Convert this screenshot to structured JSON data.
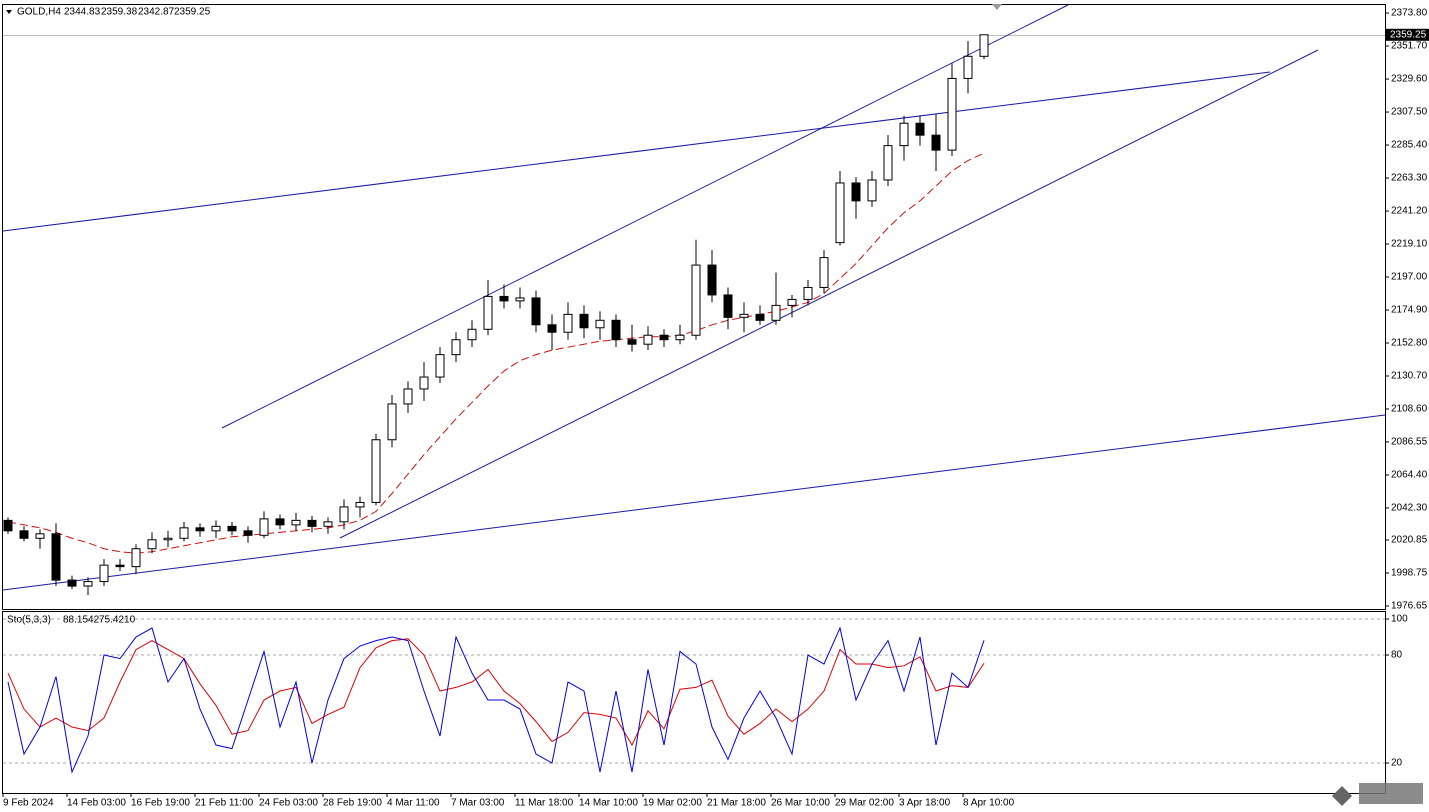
{
  "chart_data": [
    {
      "type": "candlestick",
      "title": "GOLD,H4",
      "categories": [
        "9 Feb 2024",
        null,
        null,
        null,
        "14 Feb 03:00",
        null,
        null,
        null,
        "16 Feb 19:00",
        null,
        null,
        null,
        "21 Feb 11:00",
        null,
        null,
        null,
        "24 Feb 03:00",
        null,
        null,
        null,
        "28 Feb 19:00",
        null,
        null,
        null,
        "4 Mar 11:00",
        null,
        null,
        null,
        "7 Mar 03:00",
        null,
        null,
        null,
        "11 Mar 18:00",
        null,
        null,
        null,
        "14 Mar 10:00",
        null,
        null,
        null,
        "19 Mar 02:00",
        null,
        null,
        null,
        "21 Mar 18:00",
        null,
        null,
        null,
        "26 Mar 10:00",
        null,
        null,
        null,
        "29 Mar 02:00",
        null,
        null,
        null,
        "3 Apr 18:00",
        null,
        null,
        null,
        "8 Apr 10:00",
        null
      ],
      "open": [
        2034,
        2027,
        2022,
        2025,
        1994,
        1990,
        1993,
        2004,
        2003,
        2015,
        2021,
        2022,
        2029,
        2027,
        2030,
        2027,
        2024,
        2035,
        2031,
        2034,
        2030,
        2033,
        2043,
        2046,
        2088,
        2112,
        2122,
        2130,
        2145,
        2155,
        2162,
        2184,
        2181,
        2183,
        2165,
        2160,
        2172,
        2163,
        2168,
        2155,
        2152,
        2158,
        2155,
        2158,
        2205,
        2185,
        2170,
        2172,
        2168,
        2178,
        2182,
        2190,
        2220,
        2260,
        2248,
        2262,
        2285,
        2300,
        2292,
        2282,
        2330,
        2344.83
      ],
      "high": [
        2036,
        2030,
        2028,
        2032,
        1997,
        1996,
        2008,
        2008,
        2018,
        2026,
        2027,
        2033,
        2032,
        2034,
        2033,
        2030,
        2040,
        2038,
        2039,
        2037,
        2036,
        2048,
        2050,
        2092,
        2118,
        2127,
        2140,
        2150,
        2160,
        2168,
        2195,
        2192,
        2190,
        2188,
        2172,
        2180,
        2178,
        2174,
        2172,
        2165,
        2164,
        2162,
        2165,
        2222,
        2215,
        2190,
        2180,
        2178,
        2200,
        2185,
        2195,
        2215,
        2268,
        2264,
        2268,
        2292,
        2305,
        2305,
        2306,
        2340,
        2355,
        2359.38
      ],
      "low": [
        2025,
        2020,
        2015,
        1990,
        1988,
        1984,
        1990,
        2000,
        1998,
        2012,
        2016,
        2020,
        2023,
        2022,
        2024,
        2019,
        2022,
        2028,
        2027,
        2026,
        2025,
        2028,
        2036,
        2044,
        2083,
        2106,
        2114,
        2126,
        2140,
        2150,
        2158,
        2176,
        2176,
        2160,
        2148,
        2155,
        2156,
        2155,
        2150,
        2147,
        2148,
        2150,
        2152,
        2155,
        2180,
        2162,
        2160,
        2165,
        2165,
        2170,
        2178,
        2186,
        2218,
        2236,
        2244,
        2258,
        2275,
        2285,
        2268,
        2278,
        2320,
        2342.87
      ],
      "close": [
        2027,
        2022,
        2025,
        1994,
        1990,
        1993,
        2004,
        2003,
        2015,
        2021,
        2022,
        2029,
        2027,
        2030,
        2027,
        2024,
        2035,
        2031,
        2034,
        2030,
        2033,
        2043,
        2046,
        2088,
        2112,
        2122,
        2130,
        2145,
        2155,
        2162,
        2184,
        2181,
        2183,
        2165,
        2160,
        2172,
        2163,
        2168,
        2155,
        2152,
        2158,
        2155,
        2158,
        2205,
        2185,
        2170,
        2172,
        2168,
        2178,
        2182,
        2190,
        2210,
        2260,
        2248,
        2262,
        2285,
        2300,
        2292,
        2282,
        2330,
        2344.83,
        2359.25
      ],
      "up_color": "#ffffff",
      "down_color": "#000000",
      "edge_color": "#000000",
      "overlay": {
        "color": "#d01010",
        "dashed": true,
        "values": [
          2033,
          2031,
          2029,
          2026,
          2022,
          2019,
          2015,
          2013,
          2012,
          2013,
          2015,
          2017,
          2019,
          2021,
          2023,
          2024,
          2025,
          2026,
          2027,
          2028,
          2029,
          2031,
          2034,
          2040,
          2052,
          2065,
          2078,
          2090,
          2102,
          2113,
          2124,
          2134,
          2141,
          2145,
          2148,
          2150,
          2152,
          2154,
          2155,
          2156,
          2157,
          2157,
          2158,
          2161,
          2165,
          2168,
          2170,
          2172,
          2174,
          2177,
          2180,
          2186,
          2196,
          2206,
          2218,
          2230,
          2240,
          2248,
          2258,
          2268,
          2275,
          2280
        ]
      },
      "ylim": [
        1975.3,
        2379.2
      ],
      "yticks": [
        {
          "value": 2373.8,
          "label": "2373.80"
        },
        {
          "value": 2351.7,
          "label": "2351.70"
        },
        {
          "value": 2329.6,
          "label": "2329.60"
        },
        {
          "value": 2307.5,
          "label": "2307.50"
        },
        {
          "value": 2285.4,
          "label": "2285.40"
        },
        {
          "value": 2263.3,
          "label": "2263.30"
        },
        {
          "value": 2241.2,
          "label": "2241.20"
        },
        {
          "value": 2219.1,
          "label": "2219.10"
        },
        {
          "value": 2197,
          "label": "2197.00"
        },
        {
          "value": 2174.9,
          "label": "2174.90"
        },
        {
          "value": 2152.8,
          "label": "2152.80"
        },
        {
          "value": 2130.7,
          "label": "2130.70"
        },
        {
          "value": 2108.6,
          "label": "2108.60"
        },
        {
          "value": 2086.55,
          "label": "2086.55"
        },
        {
          "value": 2064.4,
          "label": "2064.40"
        },
        {
          "value": 2042.3,
          "label": "2042.30"
        },
        {
          "value": 2020.85,
          "label": "2020.85"
        },
        {
          "value": 1998.75,
          "label": "1998.75"
        },
        {
          "value": 1976.65,
          "label": "1976.65"
        }
      ],
      "grid": false
    },
    {
      "type": "line",
      "title": "Sto(5,3,3)",
      "series": [
        {
          "color": "#0000e0",
          "values": [
            65,
            25,
            40,
            68,
            15,
            35,
            80,
            78,
            90,
            95,
            65,
            78,
            50,
            30,
            28,
            55,
            82,
            40,
            65,
            20,
            55,
            78,
            85,
            88,
            90,
            88,
            60,
            35,
            90,
            70,
            55,
            55,
            50,
            25,
            20,
            65,
            60,
            15,
            60,
            15,
            72,
            30,
            82,
            75,
            40,
            22,
            45,
            60,
            45,
            25,
            80,
            75,
            95,
            55,
            75,
            88,
            60,
            90,
            30,
            70,
            62,
            88.1542
          ]
        },
        {
          "color": "#e00000",
          "values": [
            70,
            50,
            40,
            45,
            40,
            38,
            45,
            65,
            83,
            88,
            83,
            78,
            64,
            52,
            36,
            38,
            55,
            60,
            62,
            42,
            47,
            51,
            73,
            84,
            88,
            89,
            80,
            60,
            62,
            65,
            72,
            60,
            53,
            43,
            32,
            37,
            48,
            47,
            45,
            30,
            49,
            39,
            61,
            62,
            66,
            46,
            36,
            42,
            50,
            43,
            50,
            60,
            83,
            75,
            75,
            73,
            74,
            79,
            60,
            63,
            62,
            75.421
          ],
          "value_labels": [
            null,
            null,
            null,
            null,
            null,
            null,
            null,
            null,
            null,
            null,
            null,
            null,
            null,
            null,
            null,
            null,
            null,
            null,
            null,
            null,
            null,
            null,
            null,
            null,
            null,
            null,
            null,
            null,
            null,
            null,
            null,
            null,
            null,
            null,
            null,
            null,
            null,
            null,
            null,
            null,
            null,
            null,
            null,
            null,
            null,
            null,
            null,
            null,
            null,
            null,
            null,
            null,
            null,
            null,
            null,
            null,
            null,
            null,
            null,
            null,
            null,
            "75.4210"
          ]
        }
      ],
      "ylim": [
        3.9,
        103.9
      ],
      "yticks": [
        100,
        80,
        20
      ],
      "grid": true
    }
  ]
}
